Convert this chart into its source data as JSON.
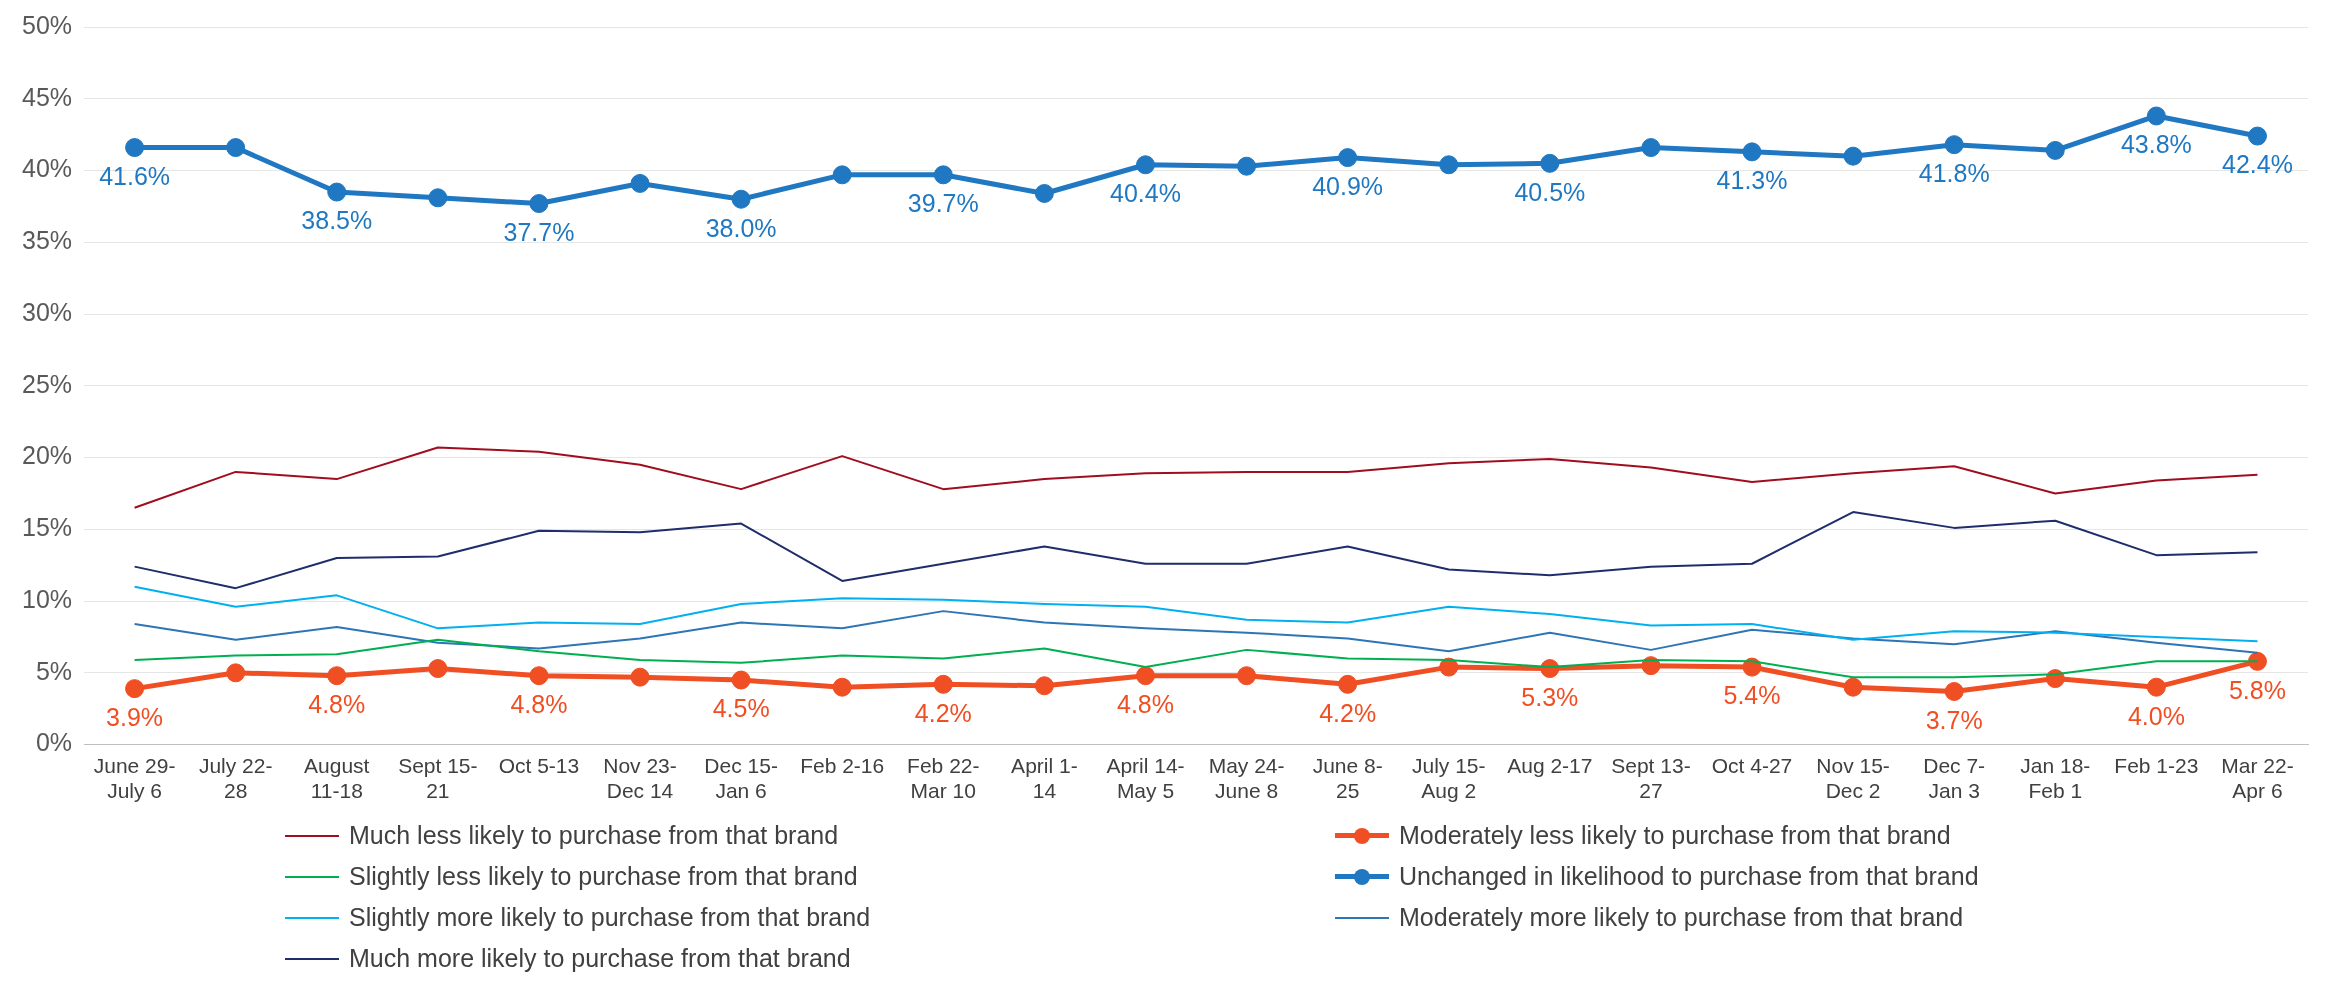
{
  "chart_data": {
    "type": "line",
    "categories": [
      "June 29-\nJuly 6",
      "July 22-\n28",
      "August\n11-18",
      "Sept 15-\n21",
      "Oct 5-13",
      "Nov 23-\nDec 14",
      "Dec 15-\nJan 6",
      "Feb 2-16",
      "Feb 22-\nMar 10",
      "April 1-\n14",
      "April 14-\nMay 5",
      "May 24-\nJune 8",
      "June 8-\n25",
      "July 15-\nAug 2",
      "Aug 2-17",
      "Sept 13-\n27",
      "Oct 4-27",
      "Nov 15-\nDec 2",
      "Dec 7-\nJan 3",
      "Jan 18-\nFeb 1",
      "Feb 1-23",
      "Mar 22-\nApr 6"
    ],
    "ylim": [
      0,
      50
    ],
    "yticks": [
      {
        "value": 0,
        "label": "0%"
      },
      {
        "value": 5,
        "label": "5%"
      },
      {
        "value": 10,
        "label": "10%"
      },
      {
        "value": 15,
        "label": "15%"
      },
      {
        "value": 20,
        "label": "20%"
      },
      {
        "value": 25,
        "label": "25%"
      },
      {
        "value": 30,
        "label": "30%"
      },
      {
        "value": 35,
        "label": "35%"
      },
      {
        "value": 40,
        "label": "40%"
      },
      {
        "value": 45,
        "label": "45%"
      },
      {
        "value": 50,
        "label": "50%"
      }
    ],
    "grid": "y",
    "legend": "bottom",
    "line_style": "solid",
    "series": [
      {
        "name": "Much less likely to purchase from that brand",
        "color": "#a00d1f",
        "marker": "none",
        "values": [
          16.5,
          19.0,
          18.5,
          20.7,
          20.4,
          19.5,
          17.8,
          20.1,
          17.8,
          18.5,
          18.9,
          19.0,
          19.0,
          19.6,
          19.9,
          19.3,
          18.3,
          18.9,
          19.4,
          17.5,
          18.4,
          18.8
        ]
      },
      {
        "name": "Moderately less likely to purchase from that brand",
        "color": "#f04e23",
        "marker": "circle",
        "values": [
          3.9,
          5.0,
          4.8,
          5.3,
          4.8,
          4.7,
          4.5,
          4.0,
          4.2,
          4.1,
          4.8,
          4.8,
          4.2,
          5.4,
          5.3,
          5.5,
          5.4,
          4.0,
          3.7,
          4.6,
          4.0,
          5.8
        ],
        "value_labels": [
          "3.9%",
          null,
          "4.8%",
          null,
          "4.8%",
          null,
          "4.5%",
          null,
          "4.2%",
          null,
          "4.8%",
          null,
          "4.2%",
          null,
          "5.3%",
          null,
          "5.4%",
          null,
          "3.7%",
          null,
          "4.0%",
          "5.8%"
        ]
      },
      {
        "name": "Slightly less likely to purchase from that brand",
        "color": "#00b050",
        "marker": "none",
        "values": [
          5.9,
          6.2,
          6.3,
          7.3,
          6.5,
          5.9,
          5.7,
          6.2,
          6.0,
          6.7,
          5.4,
          6.6,
          6.0,
          5.9,
          5.4,
          5.9,
          5.8,
          4.7,
          4.7,
          4.9,
          5.8,
          5.8
        ]
      },
      {
        "name": "Unchanged in likelihood to purchase from that brand",
        "color": "#1f78c1",
        "marker": "circle",
        "values": [
          41.6,
          41.6,
          38.5,
          38.1,
          37.7,
          39.1,
          38.0,
          39.7,
          39.7,
          38.4,
          40.4,
          40.3,
          40.9,
          40.4,
          40.5,
          41.6,
          41.3,
          41.0,
          41.8,
          41.4,
          43.8,
          42.4
        ],
        "value_labels": [
          "41.6%",
          null,
          "38.5%",
          null,
          "37.7%",
          null,
          "38.0%",
          null,
          "39.7%",
          null,
          "40.4%",
          null,
          "40.9%",
          null,
          "40.5%",
          null,
          "41.3%",
          null,
          "41.8%",
          null,
          "43.8%",
          "42.4%"
        ]
      },
      {
        "name": "Slightly more likely to purchase from that brand",
        "color": "#00b0f0",
        "marker": "none",
        "values": [
          11.0,
          9.6,
          10.4,
          8.1,
          8.5,
          8.4,
          9.8,
          10.2,
          10.1,
          9.8,
          9.6,
          8.7,
          8.5,
          9.6,
          9.1,
          8.3,
          8.4,
          7.3,
          7.9,
          7.8,
          7.5,
          7.2
        ]
      },
      {
        "name": "Moderately more likely to purchase from that brand",
        "color": "#2e75b6",
        "marker": "none",
        "values": [
          8.4,
          7.3,
          8.2,
          7.1,
          6.7,
          7.4,
          8.5,
          8.1,
          9.3,
          8.5,
          8.1,
          7.8,
          7.4,
          6.5,
          7.8,
          6.6,
          8.0,
          7.4,
          7.0,
          7.9,
          7.1,
          6.4
        ]
      },
      {
        "name": "Much more likely to purchase from that brand",
        "color": "#1f2d6b",
        "marker": "none",
        "values": [
          12.4,
          10.9,
          13.0,
          13.1,
          14.9,
          14.8,
          15.4,
          11.4,
          12.6,
          13.8,
          12.6,
          12.6,
          13.8,
          12.2,
          11.8,
          12.4,
          12.6,
          16.2,
          15.1,
          15.6,
          13.2,
          13.4
        ]
      }
    ]
  }
}
